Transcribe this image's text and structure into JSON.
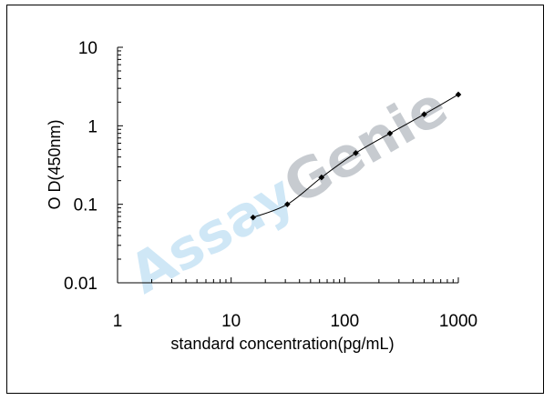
{
  "chart_data": {
    "type": "line",
    "title": "",
    "xlabel": "standard concentration(pg/mL)",
    "ylabel": "O D(450nm)",
    "x_scale": "log",
    "y_scale": "log",
    "xlim": [
      1,
      1000
    ],
    "ylim": [
      0.01,
      10
    ],
    "x_ticks": [
      1,
      10,
      100,
      1000
    ],
    "x_tick_labels": [
      "1",
      "10",
      "100",
      "1000"
    ],
    "y_ticks": [
      0.01,
      0.1,
      1,
      10
    ],
    "y_tick_labels": [
      "0.01",
      "0.1",
      "1",
      "10"
    ],
    "grid": false,
    "series": [
      {
        "x": [
          15.6,
          31.25,
          62.5,
          125,
          250,
          500,
          1000
        ],
        "y": [
          0.068,
          0.1,
          0.22,
          0.45,
          0.8,
          1.4,
          2.5
        ]
      }
    ],
    "watermark": {
      "text_part1": "Assay",
      "text_part2": "Genie",
      "color1": "#a8d4ef",
      "color2": "#9aa2ab"
    },
    "line_color": "#000000",
    "marker_color": "#000000"
  }
}
